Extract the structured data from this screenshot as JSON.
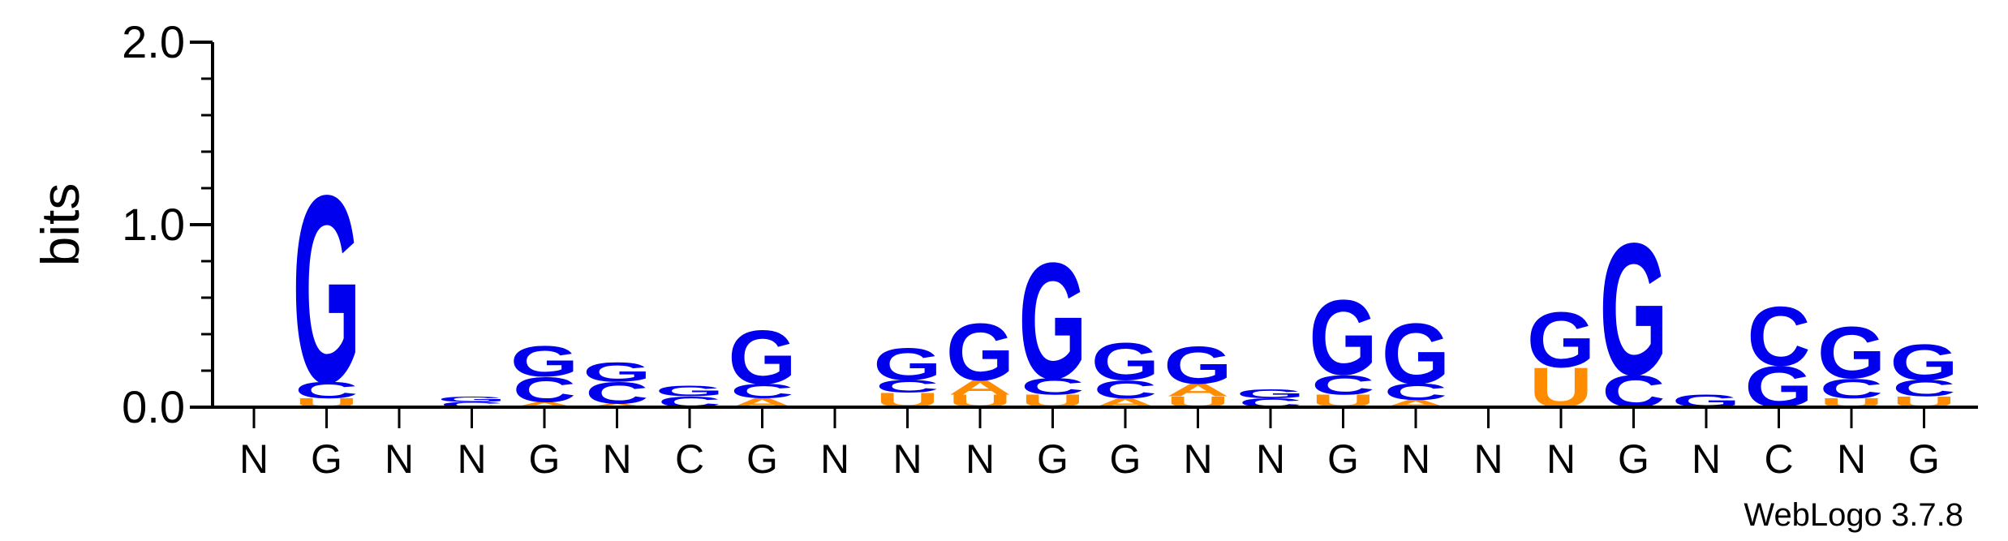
{
  "chart_data": {
    "type": "sequence-logo",
    "ylabel": "bits",
    "ylim": [
      0,
      2.0
    ],
    "yticks": [
      "0.0",
      "1.0",
      "2.0"
    ],
    "yticks_values": [
      0.0,
      1.0,
      2.0
    ],
    "credit": "WebLogo 3.7.8",
    "colors": {
      "G": "#0000ee",
      "C": "#0000ee",
      "A": "#ff8c00",
      "U": "#ff8c00"
    },
    "columns": [
      {
        "label": "N",
        "stack": []
      },
      {
        "label": "G",
        "stack": [
          [
            "U",
            0.05
          ],
          [
            "C",
            0.09
          ],
          [
            "G",
            1.05
          ]
        ]
      },
      {
        "label": "N",
        "stack": []
      },
      {
        "label": "N",
        "stack": [
          [
            "C",
            0.03
          ],
          [
            "G",
            0.03
          ]
        ]
      },
      {
        "label": "G",
        "stack": [
          [
            "A",
            0.03
          ],
          [
            "C",
            0.14
          ],
          [
            "G",
            0.17
          ]
        ]
      },
      {
        "label": "N",
        "stack": [
          [
            "A",
            0.02
          ],
          [
            "C",
            0.12
          ],
          [
            "G",
            0.11
          ]
        ]
      },
      {
        "label": "C",
        "stack": [
          [
            "C",
            0.06
          ],
          [
            "G",
            0.06
          ]
        ]
      },
      {
        "label": "G",
        "stack": [
          [
            "A",
            0.05
          ],
          [
            "C",
            0.08
          ],
          [
            "G",
            0.3
          ]
        ]
      },
      {
        "label": "N",
        "stack": []
      },
      {
        "label": "N",
        "stack": [
          [
            "U",
            0.08
          ],
          [
            "C",
            0.07
          ],
          [
            "G",
            0.18
          ]
        ]
      },
      {
        "label": "N",
        "stack": [
          [
            "U",
            0.07
          ],
          [
            "A",
            0.08
          ],
          [
            "G",
            0.32
          ]
        ]
      },
      {
        "label": "G",
        "stack": [
          [
            "U",
            0.07
          ],
          [
            "C",
            0.09
          ],
          [
            "G",
            0.65
          ]
        ]
      },
      {
        "label": "G",
        "stack": [
          [
            "A",
            0.05
          ],
          [
            "C",
            0.1
          ],
          [
            "G",
            0.21
          ]
        ]
      },
      {
        "label": "N",
        "stack": [
          [
            "U",
            0.06
          ],
          [
            "A",
            0.07
          ],
          [
            "G",
            0.21
          ]
        ]
      },
      {
        "label": "N",
        "stack": [
          [
            "C",
            0.05
          ],
          [
            "G",
            0.05
          ]
        ]
      },
      {
        "label": "G",
        "stack": [
          [
            "U",
            0.07
          ],
          [
            "C",
            0.11
          ],
          [
            "G",
            0.42
          ]
        ]
      },
      {
        "label": "N",
        "stack": [
          [
            "A",
            0.04
          ],
          [
            "C",
            0.09
          ],
          [
            "G",
            0.34
          ]
        ]
      },
      {
        "label": "N",
        "stack": []
      },
      {
        "label": "N",
        "stack": [
          [
            "U",
            0.22
          ],
          [
            "G",
            0.31
          ]
        ]
      },
      {
        "label": "G",
        "stack": [
          [
            "C",
            0.18
          ],
          [
            "G",
            0.74
          ]
        ]
      },
      {
        "label": "N",
        "stack": [
          [
            "G",
            0.07
          ]
        ]
      },
      {
        "label": "C",
        "stack": [
          [
            "G",
            0.23
          ],
          [
            "C",
            0.33
          ]
        ]
      },
      {
        "label": "N",
        "stack": [
          [
            "U",
            0.05
          ],
          [
            "C",
            0.11
          ],
          [
            "G",
            0.29
          ]
        ]
      },
      {
        "label": "G",
        "stack": [
          [
            "U",
            0.06
          ],
          [
            "C",
            0.09
          ],
          [
            "G",
            0.2
          ]
        ]
      }
    ]
  }
}
